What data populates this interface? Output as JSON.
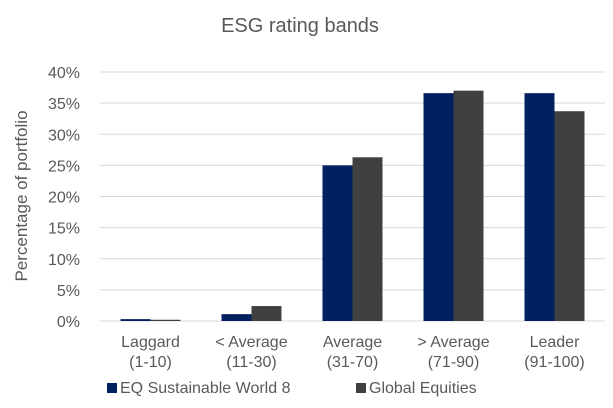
{
  "chart_data": {
    "type": "bar",
    "title": "ESG rating bands",
    "ylabel": "Percentage of portfolio",
    "xlabel": "",
    "ylim": [
      0,
      40
    ],
    "yticks": [
      0,
      5,
      10,
      15,
      20,
      25,
      30,
      35,
      40
    ],
    "ytick_suffix": "%",
    "grid": true,
    "legend_position": "bottom",
    "categories": [
      {
        "line1": "Laggard",
        "line2": "(1-10)"
      },
      {
        "line1": "< Average",
        "line2": "(11-30)"
      },
      {
        "line1": "Average",
        "line2": "(31-70)"
      },
      {
        "line1": "> Average",
        "line2": "(71-90)"
      },
      {
        "line1": "Leader",
        "line2": "(91-100)"
      }
    ],
    "series": [
      {
        "name": "EQ Sustainable World 8",
        "color": "#002060",
        "values": [
          0.3,
          1.1,
          25.0,
          36.6,
          36.6
        ]
      },
      {
        "name": "Global Equities",
        "color": "#404040",
        "values": [
          0.2,
          2.4,
          26.3,
          37.0,
          33.7
        ]
      }
    ]
  }
}
